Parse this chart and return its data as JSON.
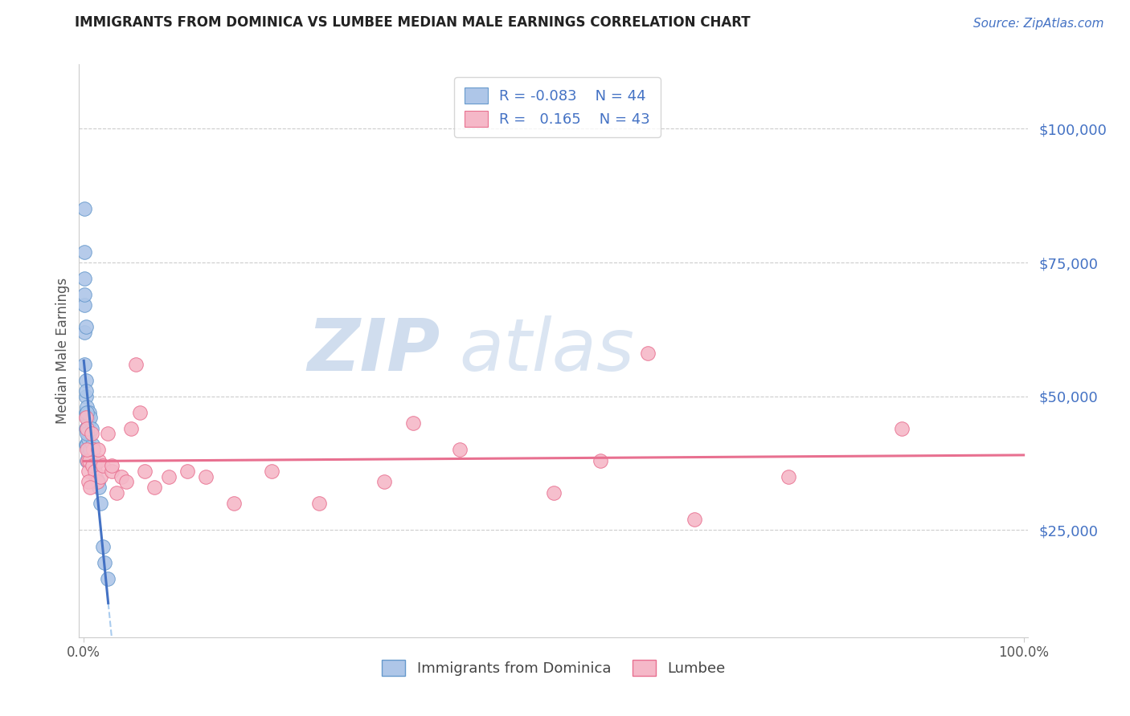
{
  "title": "IMMIGRANTS FROM DOMINICA VS LUMBEE MEDIAN MALE EARNINGS CORRELATION CHART",
  "source": "Source: ZipAtlas.com",
  "ylabel": "Median Male Earnings",
  "ytick_labels": [
    "$25,000",
    "$50,000",
    "$75,000",
    "$100,000"
  ],
  "ytick_values": [
    25000,
    50000,
    75000,
    100000
  ],
  "ymin": 5000,
  "ymax": 112000,
  "xmin": -0.005,
  "xmax": 1.005,
  "color_blue_fill": "#AEC6E8",
  "color_pink_fill": "#F5B8C8",
  "color_blue_edge": "#6699CC",
  "color_pink_edge": "#E87090",
  "color_blue_line": "#4472C4",
  "color_pink_line": "#E87090",
  "color_dashed": "#AACCEE",
  "grid_color": "#CCCCCC",
  "watermark_zip_color": "#C8D8EC",
  "watermark_atlas_color": "#C8D8EC",
  "dominica_x": [
    0.001,
    0.001,
    0.001,
    0.001,
    0.002,
    0.002,
    0.002,
    0.002,
    0.002,
    0.003,
    0.003,
    0.003,
    0.003,
    0.003,
    0.004,
    0.004,
    0.004,
    0.005,
    0.005,
    0.005,
    0.006,
    0.006,
    0.007,
    0.007,
    0.008,
    0.008,
    0.009,
    0.01,
    0.011,
    0.012,
    0.013,
    0.015,
    0.016,
    0.018,
    0.02,
    0.022,
    0.025,
    0.001,
    0.002,
    0.003,
    0.003,
    0.001,
    0.002,
    0.001
  ],
  "dominica_y": [
    85000,
    72000,
    67000,
    62000,
    53000,
    50000,
    47000,
    44000,
    41000,
    48000,
    46000,
    44000,
    41000,
    38000,
    46000,
    43000,
    40000,
    45000,
    42000,
    39000,
    47000,
    43000,
    46000,
    40000,
    44000,
    38000,
    41000,
    40000,
    38000,
    37000,
    35000,
    34000,
    33000,
    30000,
    22000,
    19000,
    16000,
    56000,
    51000,
    47000,
    43000,
    77000,
    63000,
    69000
  ],
  "lumbee_x": [
    0.002,
    0.003,
    0.004,
    0.005,
    0.006,
    0.008,
    0.009,
    0.01,
    0.012,
    0.014,
    0.016,
    0.018,
    0.02,
    0.025,
    0.03,
    0.035,
    0.04,
    0.045,
    0.05,
    0.055,
    0.065,
    0.075,
    0.09,
    0.11,
    0.13,
    0.16,
    0.2,
    0.25,
    0.32,
    0.4,
    0.5,
    0.55,
    0.65,
    0.75,
    0.87,
    0.003,
    0.005,
    0.007,
    0.015,
    0.03,
    0.06,
    0.35,
    0.6
  ],
  "lumbee_y": [
    46000,
    44000,
    38000,
    36000,
    38000,
    43000,
    37000,
    40000,
    36000,
    34000,
    38000,
    35000,
    37000,
    43000,
    36000,
    32000,
    35000,
    34000,
    44000,
    56000,
    36000,
    33000,
    35000,
    36000,
    35000,
    30000,
    36000,
    30000,
    34000,
    40000,
    32000,
    38000,
    27000,
    35000,
    44000,
    40000,
    34000,
    33000,
    40000,
    37000,
    47000,
    45000,
    58000
  ]
}
